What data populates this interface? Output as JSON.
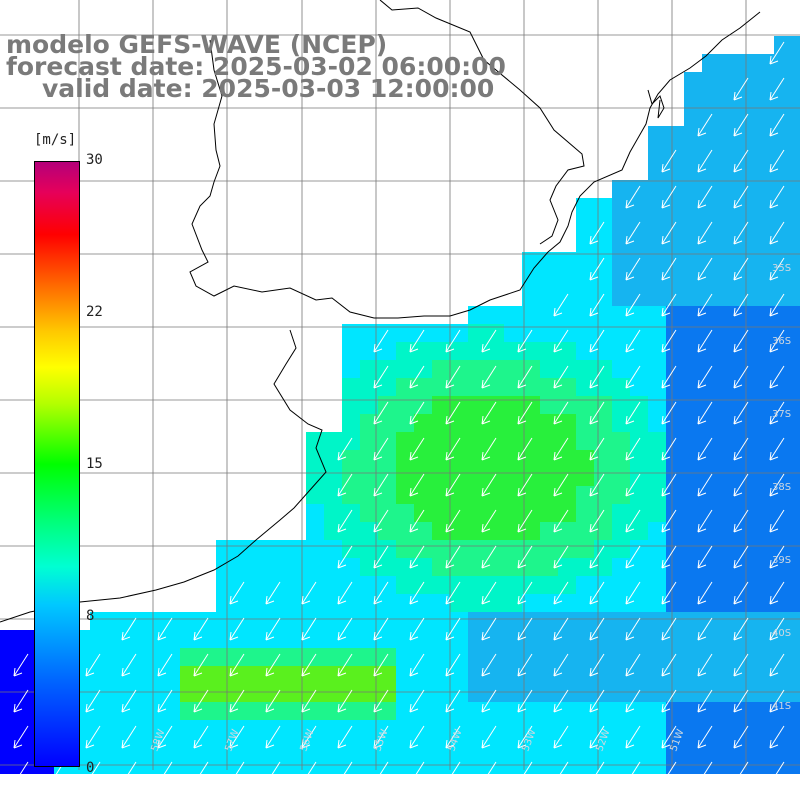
{
  "title": {
    "line1": "modelo GEFS-WAVE (NCEP)",
    "line2": "forecast date: 2025-03-02 06:00:00",
    "line3": "valid date: 2025-03-03 12:00:00"
  },
  "colorbar": {
    "unit": "[m/s]",
    "ticks": [
      "30",
      "22",
      "15",
      "8",
      "0"
    ],
    "min": 0,
    "max": 30
  },
  "map": {
    "region": "Southwest Atlantic, Rio de la Plata / Uruguay coast",
    "land_color": "#ffffff",
    "coastline_color": "#000000",
    "grid_color": "#777777",
    "arrow_color": "#ffffff",
    "field_colors": {
      "weak": "#0000ff",
      "low": "#0a78f0",
      "mid": "#16b4f0",
      "cyan": "#00e6ff",
      "aqua": "#00f5c8",
      "green_light": "#1ef58c",
      "green": "#28f03c",
      "green_strong": "#5af01e",
      "yellowgreen": "#a0f028"
    },
    "wind_direction": "from northeast toward southwest"
  },
  "grid_labels": {
    "lat_right": [
      "35S",
      "36S",
      "37S",
      "38S",
      "39S",
      "40S",
      "41S"
    ],
    "lon_bottom": [
      "58W",
      "57W",
      "56W",
      "55W",
      "54W",
      "53W",
      "52W",
      "51W"
    ]
  }
}
